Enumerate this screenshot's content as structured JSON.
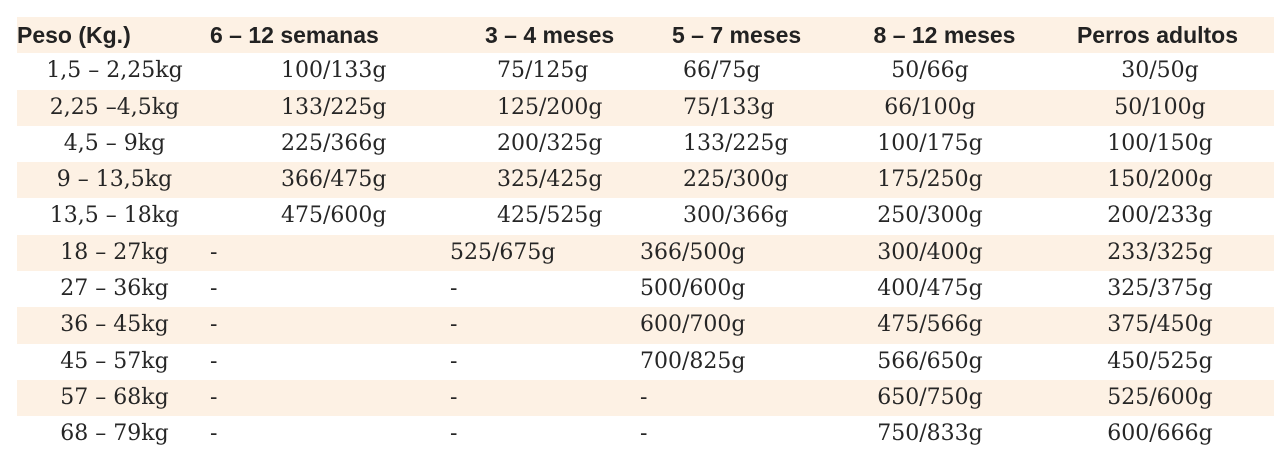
{
  "table": {
    "headers": [
      "Peso (Kg.)",
      "6 – 12 semanas",
      "3 – 4 meses",
      "5 – 7 meses",
      "8 – 12 meses",
      "Perros adultos"
    ],
    "rows": [
      [
        "1,5 – 2,25kg",
        "100/133g",
        "75/125g",
        "66/75g",
        "50/66g",
        "30/50g"
      ],
      [
        "2,25 –4,5kg",
        "133/225g",
        "125/200g",
        "75/133g",
        "66/100g",
        "50/100g"
      ],
      [
        "4,5 – 9kg",
        "225/366g",
        "200/325g",
        "133/225g",
        "100/175g",
        "100/150g"
      ],
      [
        "9 – 13,5kg",
        "366/475g",
        "325/425g",
        "225/300g",
        "175/250g",
        "150/200g"
      ],
      [
        "13,5 – 18kg",
        "475/600g",
        "425/525g",
        "300/366g",
        "250/300g",
        "200/233g"
      ],
      [
        "18 – 27kg",
        "-",
        "525/675g",
        "366/500g",
        "300/400g",
        "233/325g"
      ],
      [
        "27 – 36kg",
        "-",
        "-",
        "500/600g",
        "400/475g",
        "325/375g"
      ],
      [
        "36 – 45kg",
        "-",
        "-",
        "600/700g",
        "475/566g",
        "375/450g"
      ],
      [
        "45 – 57kg",
        "-",
        "-",
        "700/825g",
        "566/650g",
        "450/525g"
      ],
      [
        "57 – 68kg",
        "-",
        "-",
        "-",
        "650/750g",
        "525/600g"
      ],
      [
        "68 – 79kg",
        "-",
        "-",
        "-",
        "750/833g",
        "600/666g"
      ]
    ]
  },
  "colors": {
    "shade": "#fdf1e4",
    "text": "#262626"
  }
}
